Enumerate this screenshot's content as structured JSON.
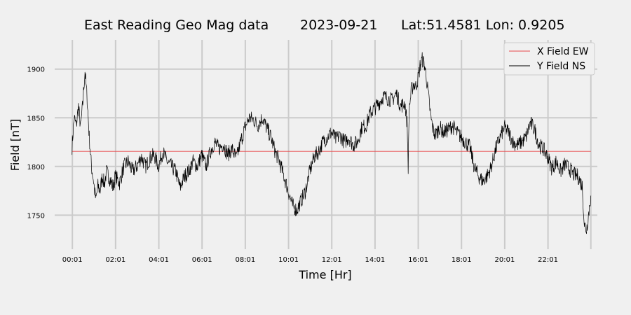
{
  "chart_data": {
    "type": "line",
    "title_parts": [
      "East Reading Geo Mag data",
      "2023-09-21",
      "Lat:51.4581  Lon: 0.9205"
    ],
    "xlabel": "Time  [Hr]",
    "ylabel": "Field  [nT]",
    "x_unit": "hours",
    "xlim": [
      -0.8,
      24.3
    ],
    "ylim": [
      1715,
      1930
    ],
    "grid": true,
    "legend_position": "top-right",
    "x_ticks": [
      {
        "x": 0.0167,
        "label": "00:01"
      },
      {
        "x": 2.0167,
        "label": "02:01"
      },
      {
        "x": 4.0167,
        "label": "04:01"
      },
      {
        "x": 6.0167,
        "label": "06:01"
      },
      {
        "x": 8.0167,
        "label": "08:01"
      },
      {
        "x": 10.0167,
        "label": "10:01"
      },
      {
        "x": 12.0167,
        "label": "12:01"
      },
      {
        "x": 14.0167,
        "label": "14:01"
      },
      {
        "x": 16.0167,
        "label": "16:01"
      },
      {
        "x": 18.0167,
        "label": "18:01"
      },
      {
        "x": 20.0167,
        "label": "20:01"
      },
      {
        "x": 22.0167,
        "label": "22:01"
      },
      {
        "x": 24.0,
        "label": ""
      }
    ],
    "y_ticks": [
      {
        "y": 1750,
        "label": "1750"
      },
      {
        "y": 1800,
        "label": "1800"
      },
      {
        "y": 1850,
        "label": "1850"
      },
      {
        "y": 1900,
        "label": "1900"
      }
    ],
    "series": [
      {
        "name": "X Field EW",
        "color": "#e8474a",
        "x": [
          0.0,
          24.0
        ],
        "values": [
          1815.5,
          1815.5
        ]
      },
      {
        "name": "Y Field NS",
        "color": "#000000",
        "x": [
          0.0,
          0.1,
          0.2,
          0.3,
          0.4,
          0.5,
          0.6,
          0.7,
          0.8,
          0.9,
          1.0,
          1.1,
          1.2,
          1.3,
          1.4,
          1.5,
          1.6,
          1.7,
          1.8,
          1.9,
          2.0,
          2.2,
          2.4,
          2.6,
          2.8,
          3.0,
          3.2,
          3.4,
          3.6,
          3.8,
          4.0,
          4.2,
          4.4,
          4.6,
          4.8,
          5.0,
          5.2,
          5.4,
          5.6,
          5.8,
          6.0,
          6.2,
          6.4,
          6.6,
          6.8,
          7.0,
          7.2,
          7.4,
          7.6,
          7.8,
          8.0,
          8.2,
          8.4,
          8.6,
          8.8,
          9.0,
          9.2,
          9.4,
          9.6,
          9.8,
          10.0,
          10.2,
          10.4,
          10.6,
          10.8,
          11.0,
          11.2,
          11.4,
          11.6,
          11.8,
          12.0,
          12.2,
          12.4,
          12.6,
          12.8,
          13.0,
          13.2,
          13.4,
          13.6,
          13.8,
          14.0,
          14.2,
          14.4,
          14.6,
          14.8,
          15.0,
          15.2,
          15.4,
          15.5,
          15.55,
          15.6,
          15.7,
          15.8,
          15.9,
          16.0,
          16.1,
          16.2,
          16.3,
          16.4,
          16.5,
          16.6,
          16.7,
          16.8,
          17.0,
          17.2,
          17.4,
          17.6,
          17.8,
          18.0,
          18.2,
          18.4,
          18.6,
          18.8,
          19.0,
          19.2,
          19.4,
          19.6,
          19.8,
          20.0,
          20.2,
          20.4,
          20.6,
          20.8,
          21.0,
          21.2,
          21.4,
          21.6,
          21.8,
          22.0,
          22.2,
          22.4,
          22.6,
          22.8,
          23.0,
          23.2,
          23.4,
          23.6,
          23.7,
          23.8,
          23.9,
          24.0
        ],
        "values": [
          1820,
          1850,
          1842,
          1862,
          1840,
          1865,
          1898,
          1870,
          1830,
          1800,
          1785,
          1765,
          1780,
          1775,
          1790,
          1782,
          1795,
          1790,
          1785,
          1778,
          1790,
          1783,
          1800,
          1805,
          1795,
          1800,
          1810,
          1800,
          1808,
          1812,
          1800,
          1815,
          1805,
          1800,
          1795,
          1778,
          1790,
          1795,
          1805,
          1800,
          1812,
          1800,
          1815,
          1825,
          1818,
          1823,
          1812,
          1818,
          1808,
          1825,
          1840,
          1850,
          1848,
          1842,
          1850,
          1840,
          1830,
          1815,
          1805,
          1790,
          1775,
          1760,
          1755,
          1765,
          1775,
          1795,
          1810,
          1815,
          1825,
          1830,
          1835,
          1828,
          1832,
          1825,
          1830,
          1822,
          1825,
          1840,
          1842,
          1855,
          1860,
          1865,
          1872,
          1870,
          1868,
          1875,
          1862,
          1865,
          1845,
          1800,
          1860,
          1878,
          1885,
          1882,
          1890,
          1903,
          1910,
          1905,
          1890,
          1870,
          1850,
          1838,
          1832,
          1840,
          1835,
          1838,
          1842,
          1835,
          1830,
          1825,
          1820,
          1800,
          1790,
          1785,
          1790,
          1800,
          1818,
          1830,
          1840,
          1835,
          1825,
          1822,
          1825,
          1830,
          1845,
          1838,
          1822,
          1818,
          1810,
          1798,
          1805,
          1795,
          1802,
          1798,
          1792,
          1790,
          1780,
          1740,
          1735,
          1752,
          1770
        ]
      }
    ]
  }
}
